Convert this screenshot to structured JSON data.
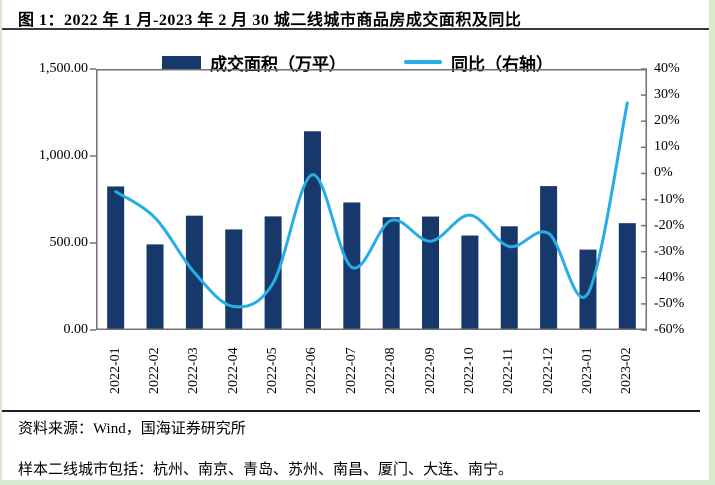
{
  "figure": {
    "title": "图 1：2022 年 1 月-2023 年 2 月 30 城二线城市商品房成交面积及同比"
  },
  "legend": {
    "bars_label": "成交面积（万平）",
    "line_label": "同比（右轴）"
  },
  "footer": {
    "source": "资料来源：Wind，国海证券研究所",
    "note": "样本二线城市包括：杭州、南京、青岛、苏州、南昌、厦门、大连、南宁。"
  },
  "colors": {
    "bar": "#17386b",
    "line": "#27aee6",
    "plot_border": "#737373",
    "rule": "#3a3a3a",
    "page_edge": "#d7e9cf"
  },
  "chart_data": {
    "type": "bar",
    "title": "2022年1月-2023年2月 30城二线城市商品房成交面积及同比",
    "categories": [
      "2022-01",
      "2022-02",
      "2022-03",
      "2022-04",
      "2022-05",
      "2022-06",
      "2022-07",
      "2022-08",
      "2022-09",
      "2022-10",
      "2022-11",
      "2022-12",
      "2023-01",
      "2023-02"
    ],
    "series": [
      {
        "name": "成交面积（万平）",
        "type": "bar",
        "axis": "left",
        "values": [
          825,
          492,
          657,
          578,
          653,
          1142,
          733,
          648,
          652,
          543,
          596,
          827,
          462,
          614
        ]
      },
      {
        "name": "同比（右轴）",
        "type": "line",
        "axis": "right",
        "values": [
          -7,
          -17,
          -38,
          -51,
          -42,
          -0.5,
          -36,
          -18,
          -26,
          -16,
          -28,
          -23,
          -46,
          27
        ]
      }
    ],
    "left_axis": {
      "label": "成交面积（万平）",
      "min": 0,
      "max": 1500,
      "tick_labels": [
        "1,500.00",
        "1,000.00",
        "500.00",
        "0.00"
      ]
    },
    "right_axis": {
      "label": "同比",
      "min": -60,
      "max": 40,
      "unit": "%",
      "tick_labels": [
        "40%",
        "30%",
        "20%",
        "10%",
        "0%",
        "-10%",
        "-20%",
        "-30%",
        "-40%",
        "-50%",
        "-60%"
      ]
    },
    "grid": false,
    "legend_position": "top"
  }
}
